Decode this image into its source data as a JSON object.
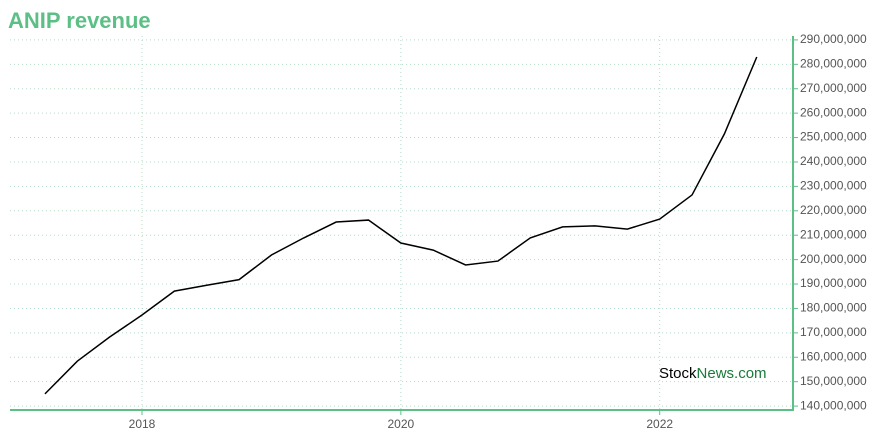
{
  "chart_data": {
    "type": "line",
    "title": "ANIP revenue",
    "x": [
      2017.25,
      2017.5,
      2017.75,
      2018.0,
      2018.25,
      2018.5,
      2018.75,
      2019.0,
      2019.25,
      2019.5,
      2019.75,
      2020.0,
      2020.25,
      2020.5,
      2020.75,
      2021.0,
      2021.25,
      2021.5,
      2021.75,
      2022.0,
      2022.25,
      2022.5,
      2022.75
    ],
    "series": [
      {
        "color": "#000000",
        "values": [
          145000000,
          158400000,
          168300000,
          177300000,
          187100000,
          189500000,
          191800000,
          201900000,
          208900000,
          215400000,
          216200000,
          206800000,
          203900000,
          197800000,
          199400000,
          208900000,
          213400000,
          213800000,
          212500000,
          216600000,
          226500000,
          251500000,
          283000000
        ]
      }
    ],
    "xlim": [
      2016.98,
      2023.03
    ],
    "xticks": [
      2018,
      2020,
      2022
    ],
    "ylim": [
      138400000,
      291600000
    ],
    "yticks": [
      {
        "value": 140000000,
        "label": "140,000,000"
      },
      {
        "value": 150000000,
        "label": "150,000,000"
      },
      {
        "value": 160000000,
        "label": "160,000,000"
      },
      {
        "value": 170000000,
        "label": "170,000,000"
      },
      {
        "value": 180000000,
        "label": "180,000,000"
      },
      {
        "value": 190000000,
        "label": "190,000,000"
      },
      {
        "value": 200000000,
        "label": "200,000,000"
      },
      {
        "value": 210000000,
        "label": "210,000,000"
      },
      {
        "value": 220000000,
        "label": "220,000,000"
      },
      {
        "value": 230000000,
        "label": "230,000,000"
      },
      {
        "value": 240000000,
        "label": "240,000,000"
      },
      {
        "value": 250000000,
        "label": "250,000,000"
      },
      {
        "value": 260000000,
        "label": "260,000,000"
      },
      {
        "value": 270000000,
        "label": "270,000,000"
      },
      {
        "value": 280000000,
        "label": "280,000,000"
      },
      {
        "value": 290000000,
        "label": "290,000,000"
      }
    ],
    "grid": true,
    "axis_color": "#5cbf86",
    "watermark": {
      "part1": "Stock",
      "part2": "News.com"
    }
  }
}
